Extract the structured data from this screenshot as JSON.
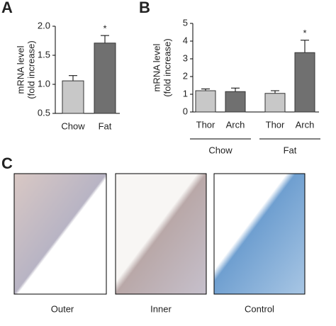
{
  "chart_data": [
    {
      "type": "bar",
      "panel": "A",
      "y_label": [
        "mRNA level",
        "(fold increase)"
      ],
      "categories": [
        "Chow",
        "Fat"
      ],
      "values": [
        1.06,
        1.71
      ],
      "errors": [
        0.09,
        0.13
      ],
      "colors": [
        "#c8c8c8",
        "#707070"
      ],
      "significance": [
        null,
        "*"
      ],
      "ylim": [
        0.5,
        2.0
      ],
      "yticks": [
        {
          "value": 0.5,
          "label": "0.5"
        },
        {
          "value": 1.0,
          "label": "1.0"
        },
        {
          "value": 1.5,
          "label": "1.5"
        },
        {
          "value": 2.0,
          "label": "2.0"
        }
      ]
    },
    {
      "type": "bar",
      "panel": "B",
      "y_label": [
        "mRNA level",
        "(fold increase)"
      ],
      "categories": [
        "Thor",
        "Arch",
        "Thor",
        "Arch"
      ],
      "groups": [
        "Chow",
        "Fat"
      ],
      "values": [
        1.2,
        1.15,
        1.05,
        3.35
      ],
      "errors": [
        0.1,
        0.2,
        0.15,
        0.7
      ],
      "colors": [
        "#c8c8c8",
        "#707070",
        "#c8c8c8",
        "#707070"
      ],
      "significance": [
        null,
        null,
        null,
        "*"
      ],
      "ylim": [
        0,
        5
      ],
      "yticks": [
        0,
        1,
        2,
        3,
        4,
        5
      ]
    }
  ],
  "panel_c": {
    "panel": "C",
    "images": [
      {
        "label": "Outer"
      },
      {
        "label": "Inner"
      },
      {
        "label": "Control"
      }
    ]
  }
}
